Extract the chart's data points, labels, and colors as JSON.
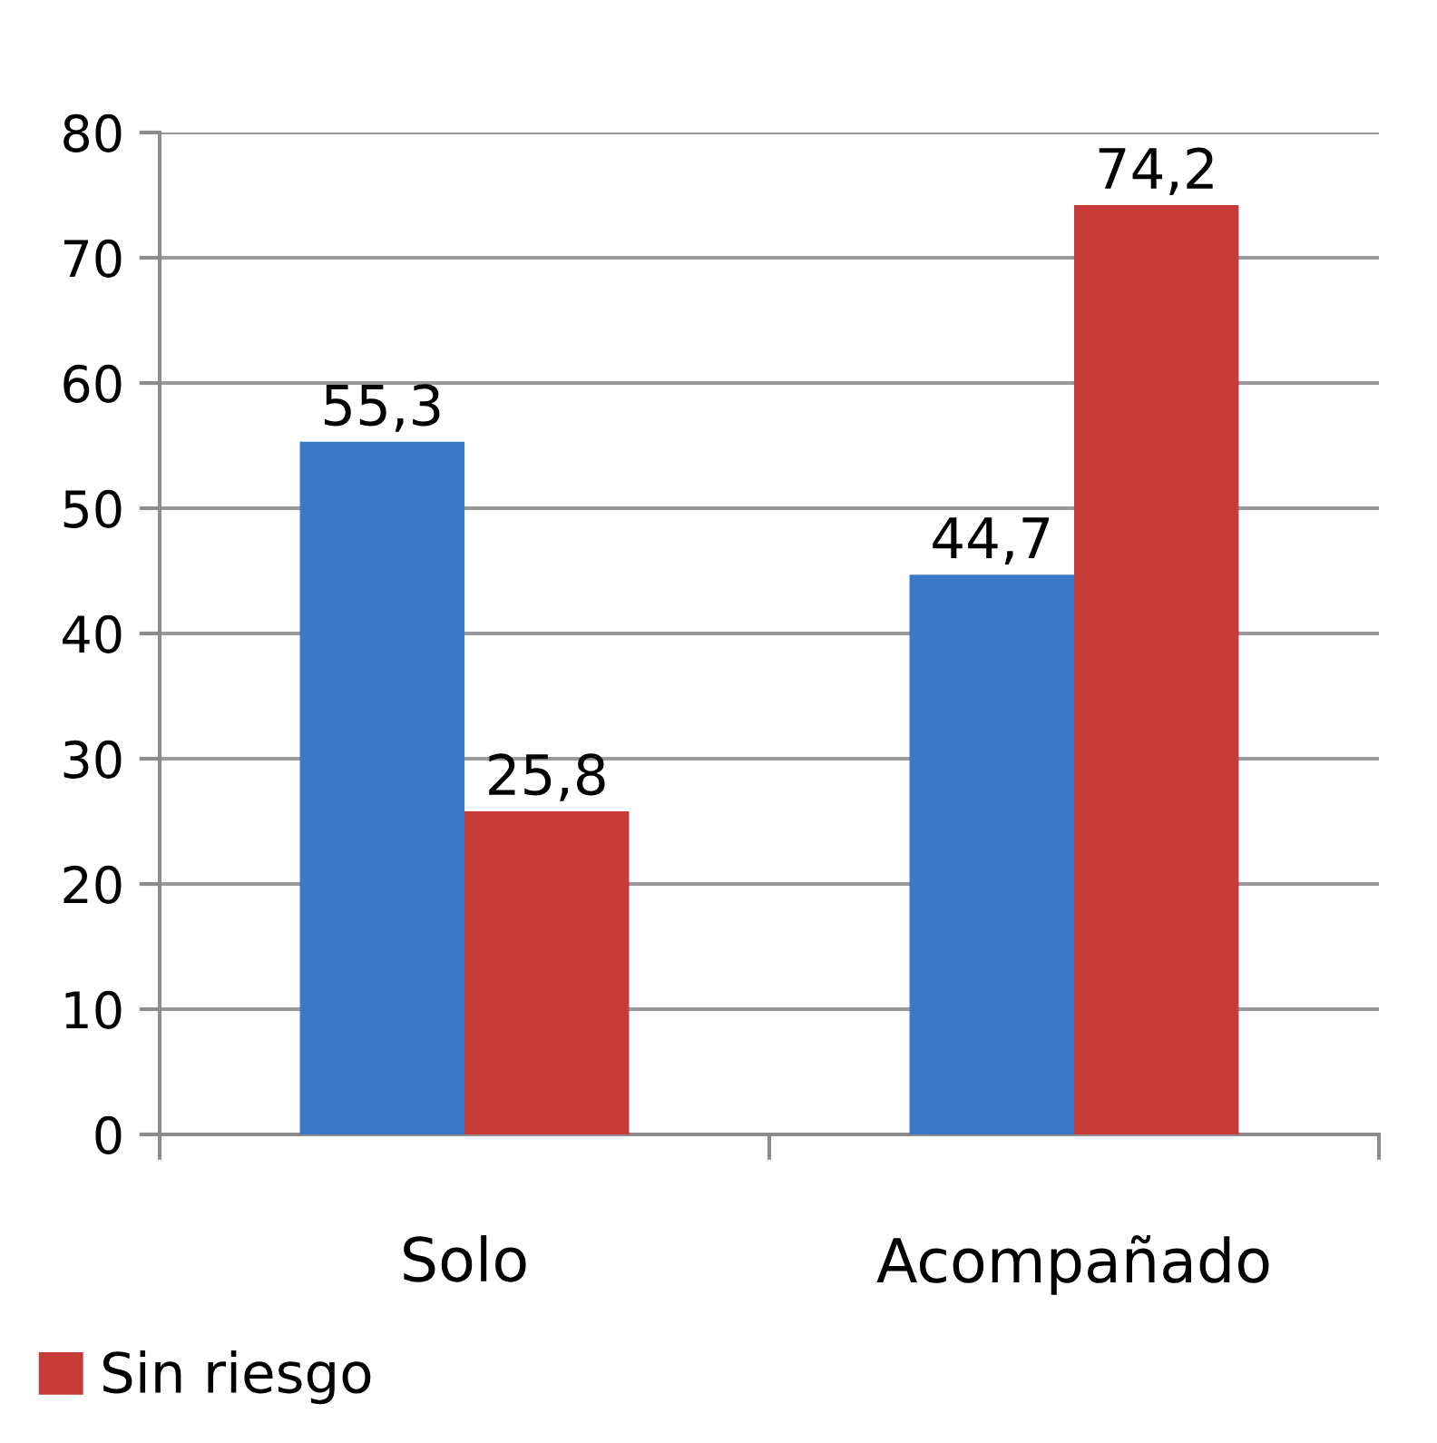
{
  "chart_data": {
    "type": "bar",
    "categories": [
      "Solo",
      "Acompañado"
    ],
    "series": [
      {
        "color": "#3a78c8",
        "values": [
          55.3,
          44.7
        ],
        "value_labels": [
          "55,3",
          "44,7"
        ]
      },
      {
        "name": "Sin riesgo",
        "color": "#c63a37",
        "values": [
          25.8,
          74.2
        ],
        "value_labels": [
          "25,8",
          "74,2"
        ]
      }
    ],
    "ylim": [
      0,
      80
    ],
    "yticks": [
      0,
      10,
      20,
      30,
      40,
      50,
      60,
      70,
      80
    ],
    "grid": "y",
    "legend": "bottom left"
  }
}
